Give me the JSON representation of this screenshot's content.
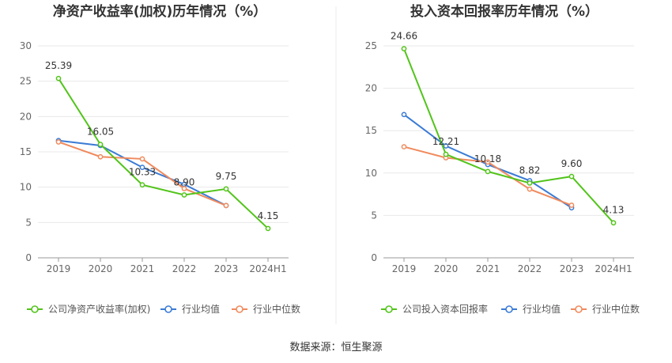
{
  "source": "数据来源：恒生聚源",
  "chart_data": [
    {
      "type": "line",
      "title": "净资产收益率(加权)历年情况（%）",
      "categories": [
        "2019",
        "2020",
        "2021",
        "2022",
        "2023",
        "2024H1"
      ],
      "ylim": [
        0,
        30
      ],
      "yticks": [
        0,
        5,
        10,
        15,
        20,
        25,
        30
      ],
      "grid": true,
      "legend_position": "bottom",
      "series": [
        {
          "name": "公司净资产收益率(加权)",
          "color": "#52c41a",
          "values": [
            25.39,
            16.05,
            10.33,
            8.9,
            9.75,
            4.15
          ],
          "labels": [
            "25.39",
            "16.05",
            "10.33",
            "8.90",
            "9.75",
            "4.15"
          ]
        },
        {
          "name": "行业均值",
          "color": "#3a7bd5",
          "values": [
            16.6,
            15.9,
            12.8,
            10.4,
            7.4,
            null
          ]
        },
        {
          "name": "行业中位数",
          "color": "#f08a5d",
          "values": [
            16.4,
            14.3,
            14.0,
            9.8,
            7.4,
            null
          ]
        }
      ]
    },
    {
      "type": "line",
      "title": "投入资本回报率历年情况（%）",
      "categories": [
        "2019",
        "2020",
        "2021",
        "2022",
        "2023",
        "2024H1"
      ],
      "ylim": [
        0,
        25
      ],
      "yticks": [
        0,
        5,
        10,
        15,
        20,
        25
      ],
      "grid": true,
      "legend_position": "bottom",
      "series": [
        {
          "name": "公司投入资本回报率",
          "color": "#52c41a",
          "values": [
            24.66,
            12.21,
            10.18,
            8.82,
            9.6,
            4.13
          ],
          "labels": [
            "24.66",
            "12.21",
            "10.18",
            "8.82",
            "9.60",
            "4.13"
          ]
        },
        {
          "name": "行业均值",
          "color": "#3a7bd5",
          "values": [
            16.9,
            13.2,
            11.0,
            9.1,
            5.9,
            null
          ]
        },
        {
          "name": "行业中位数",
          "color": "#f08a5d",
          "values": [
            13.1,
            11.8,
            11.3,
            8.1,
            6.2,
            null
          ]
        }
      ]
    }
  ]
}
